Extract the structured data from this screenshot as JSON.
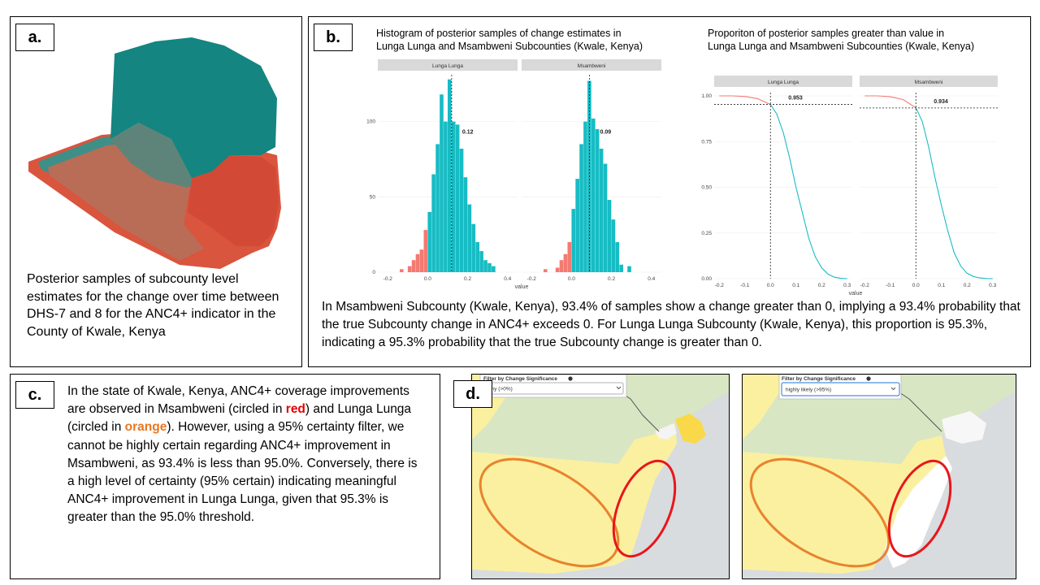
{
  "panel_a": {
    "label": "a.",
    "caption": "Posterior samples of subcounty level estimates for the change over time between DHS-7 and 8 for the ANC4+ indicator in the County of Kwale, Kenya"
  },
  "panel_b": {
    "label": "b.",
    "description": "In Msambweni Subcounty (Kwale, Kenya), 93.4% of samples show a change greater than 0, implying a 93.4% probability that the true Subcounty change in ANC4+ exceeds 0. For Lunga Lunga Subcounty (Kwale, Kenya), this proportion is 95.3%, indicating a 95.3% probability that the true Subcounty change is greater than 0."
  },
  "panel_c": {
    "label": "c.",
    "text_1": "In the state of Kwale, Kenya, ANC4+ coverage improvements are observed in Msambweni (circled in ",
    "red_word": "red",
    "text_2": ") and Lunga Lunga (circled in ",
    "orange_word": "orange",
    "text_3": "). However, using a 95% certainty filter, we cannot be highly certain regarding ANC4+ improvement in Msambweni, as 93.4% is less than 95.0%. Conversely, there is a high level of certainty (95% certain) indicating meaningful ANC4+ improvement in Lunga Lunga, given that 95.3% is greater than the 95.0% threshold."
  },
  "panel_d": {
    "label": "d.",
    "left_map": {
      "filter_label": "Filter by Change Significance",
      "filter_value": "any (>0%)"
    },
    "right_map": {
      "filter_label": "Filter by Change Significance",
      "filter_value": "highly likely (>95%)"
    },
    "colors": {
      "land_green": "#d8e6c4",
      "change_yellow": "#fbf0a0",
      "strong_yellow": "#f9d949",
      "sea": "#d9dcde",
      "red_circle": "#e8161b",
      "orange_circle": "#e8832e"
    }
  },
  "chart_data": [
    {
      "type": "bar",
      "title": "Histogram of posterior samples of change estimates in Lunga Lunga and Msambweni Subcounties (Kwale, Kenya)",
      "xlabel": "value",
      "ylabel": "",
      "xlim": [
        -0.25,
        0.45
      ],
      "ylim": [
        0,
        130
      ],
      "x_ticks": [
        "-0.2",
        "0.0",
        "0.2",
        "0.4"
      ],
      "y_ticks": [
        "0",
        "50",
        "100"
      ],
      "negative_color": "#f37a72",
      "positive_color": "#17bcc4",
      "facets": [
        {
          "name": "Lunga Lunga",
          "mean": 0.12,
          "mean_label": "0.12",
          "bin_width": 0.02,
          "bins": [
            {
              "x": -0.13,
              "count": 2
            },
            {
              "x": -0.09,
              "count": 4
            },
            {
              "x": -0.07,
              "count": 8
            },
            {
              "x": -0.05,
              "count": 12
            },
            {
              "x": -0.03,
              "count": 15
            },
            {
              "x": -0.01,
              "count": 28
            },
            {
              "x": 0.01,
              "count": 40
            },
            {
              "x": 0.03,
              "count": 65
            },
            {
              "x": 0.05,
              "count": 85
            },
            {
              "x": 0.07,
              "count": 118
            },
            {
              "x": 0.09,
              "count": 100
            },
            {
              "x": 0.11,
              "count": 128
            },
            {
              "x": 0.13,
              "count": 100
            },
            {
              "x": 0.15,
              "count": 98
            },
            {
              "x": 0.17,
              "count": 82
            },
            {
              "x": 0.19,
              "count": 63
            },
            {
              "x": 0.21,
              "count": 45
            },
            {
              "x": 0.23,
              "count": 32
            },
            {
              "x": 0.25,
              "count": 20
            },
            {
              "x": 0.27,
              "count": 14
            },
            {
              "x": 0.29,
              "count": 8
            },
            {
              "x": 0.31,
              "count": 6
            },
            {
              "x": 0.33,
              "count": 4
            }
          ]
        },
        {
          "name": "Msambweni",
          "mean": 0.09,
          "mean_label": "0.09",
          "bin_width": 0.02,
          "bins": [
            {
              "x": -0.13,
              "count": 2
            },
            {
              "x": -0.07,
              "count": 3
            },
            {
              "x": -0.05,
              "count": 8
            },
            {
              "x": -0.03,
              "count": 12
            },
            {
              "x": -0.01,
              "count": 20
            },
            {
              "x": 0.01,
              "count": 42
            },
            {
              "x": 0.03,
              "count": 62
            },
            {
              "x": 0.05,
              "count": 85
            },
            {
              "x": 0.07,
              "count": 100
            },
            {
              "x": 0.09,
              "count": 127
            },
            {
              "x": 0.11,
              "count": 102
            },
            {
              "x": 0.13,
              "count": 95
            },
            {
              "x": 0.15,
              "count": 82
            },
            {
              "x": 0.17,
              "count": 72
            },
            {
              "x": 0.19,
              "count": 48
            },
            {
              "x": 0.21,
              "count": 35
            },
            {
              "x": 0.23,
              "count": 20
            },
            {
              "x": 0.25,
              "count": 5
            },
            {
              "x": 0.29,
              "count": 4
            }
          ]
        }
      ]
    },
    {
      "type": "line",
      "title": "Proporiton of posterior samples greater than value in Lunga Lunga and Msambweni Subcounties (Kwale, Kenya)",
      "xlabel": "value",
      "ylabel": "",
      "xlim": [
        -0.22,
        0.32
      ],
      "ylim": [
        0,
        1
      ],
      "x_ticks": [
        "-0.2",
        "-0.1",
        "0.0",
        "0.1",
        "0.2",
        "0.3"
      ],
      "y_ticks": [
        "0.00",
        "0.25",
        "0.50",
        "0.75",
        "1.00"
      ],
      "negative_color": "#f37a72",
      "positive_color": "#17bcc4",
      "facets": [
        {
          "name": "Lunga Lunga",
          "threshold_x": 0,
          "threshold_y": 0.953,
          "threshold_label": "0.953",
          "x": [
            -0.2,
            -0.15,
            -0.1,
            -0.05,
            0.0,
            0.025,
            0.05,
            0.075,
            0.1,
            0.125,
            0.15,
            0.175,
            0.2,
            0.225,
            0.25,
            0.275,
            0.3
          ],
          "y": [
            1.0,
            1.0,
            0.997,
            0.985,
            0.953,
            0.9,
            0.8,
            0.66,
            0.5,
            0.36,
            0.22,
            0.12,
            0.06,
            0.025,
            0.008,
            0.002,
            0.0
          ]
        },
        {
          "name": "Msambweni",
          "threshold_x": 0,
          "threshold_y": 0.934,
          "threshold_label": "0.934",
          "x": [
            -0.2,
            -0.15,
            -0.1,
            -0.05,
            0.0,
            0.025,
            0.05,
            0.075,
            0.1,
            0.125,
            0.15,
            0.175,
            0.2,
            0.225,
            0.25,
            0.275,
            0.3
          ],
          "y": [
            1.0,
            1.0,
            0.995,
            0.98,
            0.934,
            0.86,
            0.72,
            0.55,
            0.4,
            0.26,
            0.14,
            0.07,
            0.03,
            0.012,
            0.004,
            0.001,
            0.0
          ]
        }
      ]
    }
  ]
}
